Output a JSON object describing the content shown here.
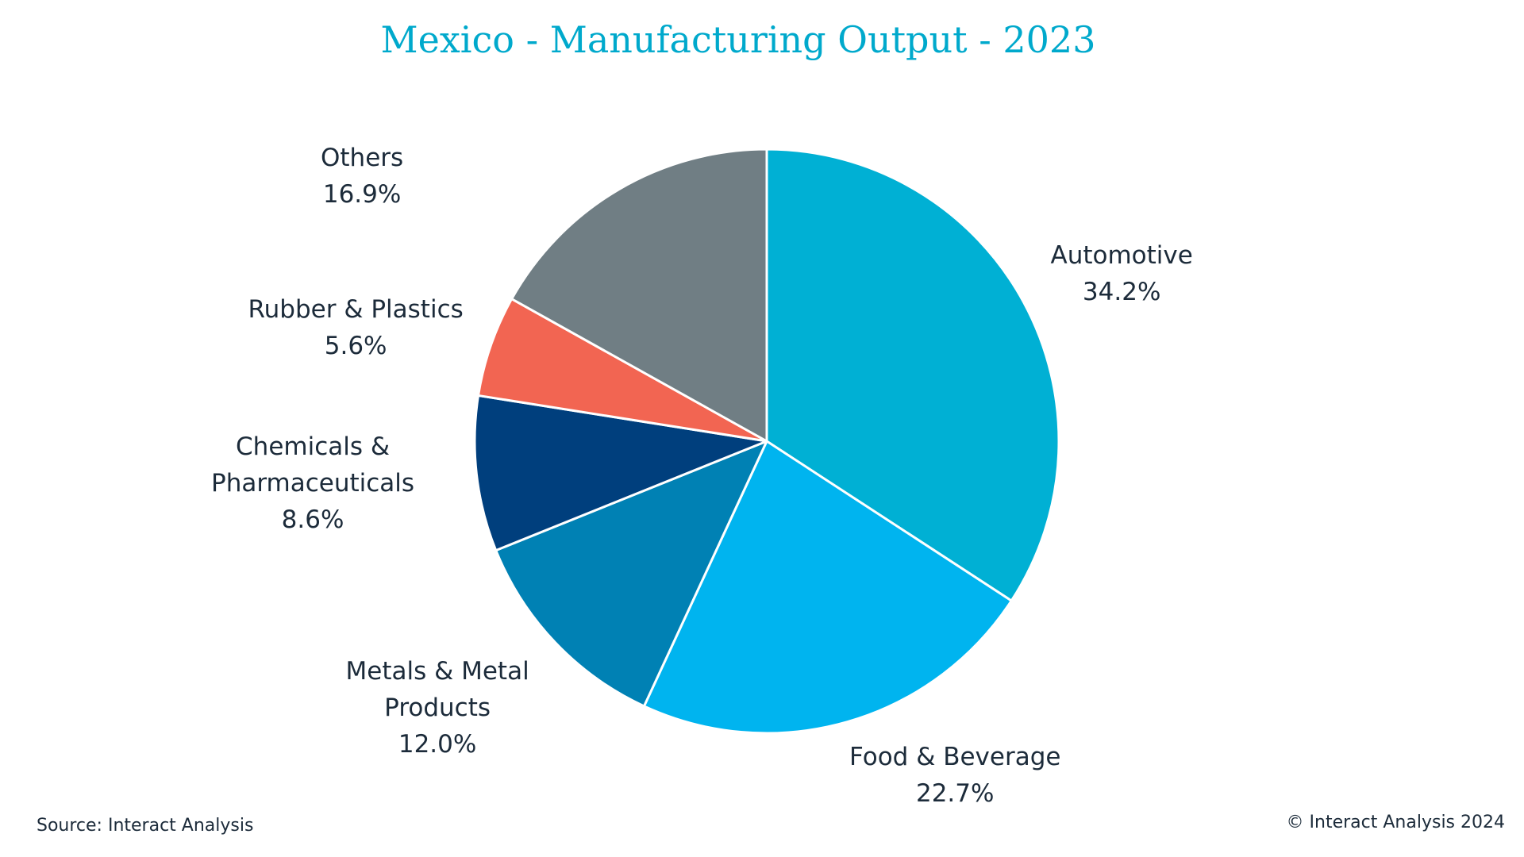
{
  "chart_data": {
    "type": "pie",
    "title": "Mexico - Manufacturing Output - 2023",
    "slices": [
      {
        "label": "Automotive",
        "value": 34.2,
        "display": "34.2%",
        "color": "#00b0d4"
      },
      {
        "label": "Food & Beverage",
        "value": 22.7,
        "display": "22.7%",
        "color": "#00b4ef"
      },
      {
        "label": "Metals & Metal Products",
        "value": 12.0,
        "display": "12.0%",
        "color": "#0081b4"
      },
      {
        "label": "Chemicals & Pharmaceuticals",
        "value": 8.6,
        "display": "8.6%",
        "color": "#003f7d"
      },
      {
        "label": "Rubber & Plastics",
        "value": 5.6,
        "display": "5.6%",
        "color": "#f26552"
      },
      {
        "label": "Others",
        "value": 16.9,
        "display": "16.9%",
        "color": "#707e84"
      }
    ],
    "start_angle": "12 o'clock",
    "direction": "clockwise",
    "legend": "none (data labels outside slices)"
  },
  "footer": {
    "source": "Source: Interact Analysis",
    "copyright": "© Interact Analysis 2024"
  }
}
